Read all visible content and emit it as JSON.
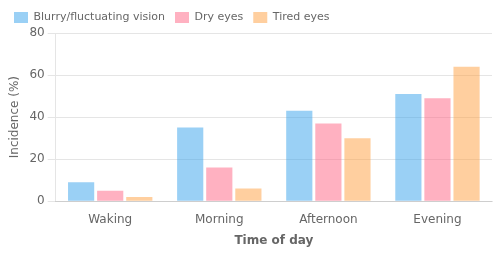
{
  "chart_data": {
    "type": "bar",
    "categories": [
      "Waking",
      "Morning",
      "Afternoon",
      "Evening"
    ],
    "series": [
      {
        "name": "Blurry/fluctuating vision",
        "values": [
          9,
          35,
          43,
          51
        ]
      },
      {
        "name": "Dry eyes",
        "values": [
          5,
          16,
          37,
          49
        ]
      },
      {
        "name": "Tired eyes",
        "values": [
          2,
          6,
          30,
          64
        ]
      }
    ],
    "xlabel": "Time of day",
    "ylabel": "Incidence (%)",
    "ylim": [
      0,
      80
    ],
    "yticks": [
      0,
      20,
      40,
      60,
      80
    ],
    "grid": true,
    "legend": "upper left"
  }
}
